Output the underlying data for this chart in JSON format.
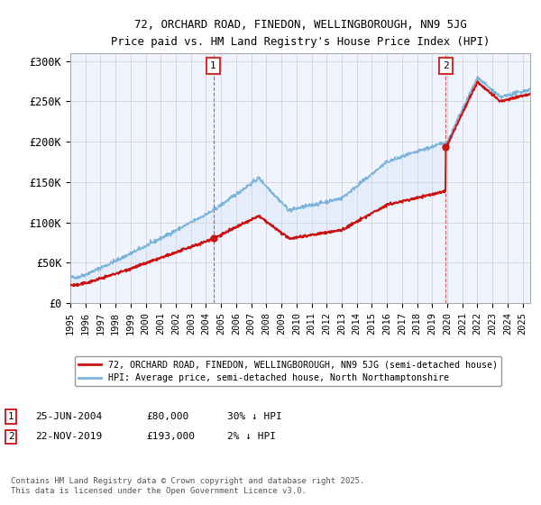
{
  "title_line1": "72, ORCHARD ROAD, FINEDON, WELLINGBOROUGH, NN9 5JG",
  "title_line2": "Price paid vs. HM Land Registry's House Price Index (HPI)",
  "background_color": "#ffffff",
  "plot_bg_color": "#f0f4ff",
  "grid_color": "#cccccc",
  "hpi_color": "#7ab3d9",
  "price_color": "#cc1111",
  "dashed_line_color": "#cc3333",
  "fill_color": "#c8dcf0",
  "legend_entries": [
    "72, ORCHARD ROAD, FINEDON, WELLINGBOROUGH, NN9 5JG (semi-detached house)",
    "HPI: Average price, semi-detached house, North Northamptonshire"
  ],
  "footnote": "Contains HM Land Registry data © Crown copyright and database right 2025.\nThis data is licensed under the Open Government Licence v3.0.",
  "yticks": [
    0,
    50000,
    100000,
    150000,
    200000,
    250000,
    300000
  ],
  "ytick_labels": [
    "£0",
    "£50K",
    "£100K",
    "£150K",
    "£200K",
    "£250K",
    "£300K"
  ],
  "sale1_x": 2004.48,
  "sale2_x": 2019.9,
  "sale1_y": 80000,
  "sale2_y": 193000,
  "ylim": [
    0,
    310000
  ],
  "xlim": [
    1995,
    2025.5
  ]
}
